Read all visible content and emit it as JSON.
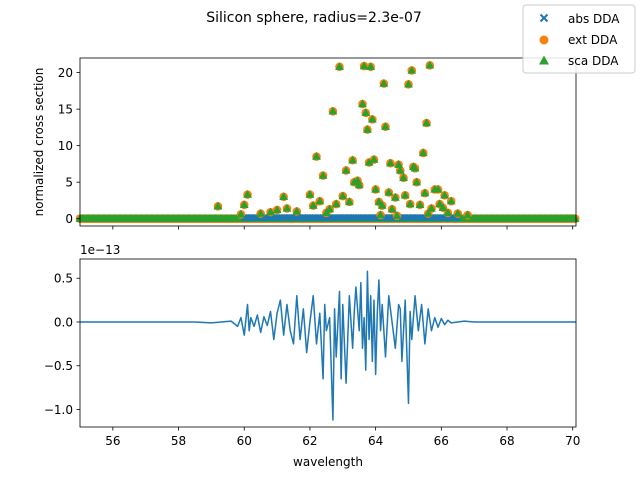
{
  "chart_data": [
    {
      "type": "scatter",
      "title": "Silicon sphere, radius=2.3e-07",
      "xlabel": "",
      "ylabel": "normalized cross section",
      "xlim": [
        55.0,
        70.1
      ],
      "ylim": [
        -1.0,
        22.0
      ],
      "yticks": [
        0,
        5,
        10,
        15,
        20
      ],
      "ytick_labels": [
        "0",
        "5",
        "10",
        "15",
        "20"
      ],
      "xticks": [
        56,
        58,
        60,
        62,
        64,
        66,
        68,
        70
      ],
      "legend": {
        "position": "top-right",
        "entries": [
          "abs DDA",
          "ext DDA",
          "sca DDA"
        ]
      },
      "series": [
        {
          "name": "abs DDA",
          "marker": "x",
          "color": "#1f77b4",
          "note_values": "all approx 0"
        },
        {
          "name": "ext DDA",
          "marker": "o",
          "color": "#ff7f0e"
        },
        {
          "name": "sca DDA",
          "marker": "^",
          "color": "#2ca02c"
        }
      ],
      "points": [
        [
          59.2,
          1.7
        ],
        [
          59.9,
          0.6
        ],
        [
          60.0,
          1.9
        ],
        [
          60.1,
          3.3
        ],
        [
          60.5,
          0.7
        ],
        [
          60.8,
          0.9
        ],
        [
          61.0,
          1.2
        ],
        [
          61.2,
          3.0
        ],
        [
          61.3,
          1.4
        ],
        [
          61.6,
          1.0
        ],
        [
          62.0,
          3.3
        ],
        [
          62.1,
          1.8
        ],
        [
          62.2,
          8.5
        ],
        [
          62.3,
          2.4
        ],
        [
          62.4,
          5.9
        ],
        [
          62.5,
          0.8
        ],
        [
          62.6,
          1.3
        ],
        [
          62.7,
          14.7
        ],
        [
          62.8,
          2.0
        ],
        [
          62.9,
          20.8
        ],
        [
          63.0,
          3.1
        ],
        [
          63.1,
          6.6
        ],
        [
          63.2,
          2.3
        ],
        [
          63.3,
          8.0
        ],
        [
          63.35,
          5.0
        ],
        [
          63.45,
          5.2
        ],
        [
          63.5,
          4.6
        ],
        [
          63.6,
          15.7
        ],
        [
          63.65,
          20.9
        ],
        [
          63.7,
          14.5
        ],
        [
          63.75,
          12.2
        ],
        [
          63.8,
          7.7
        ],
        [
          63.85,
          20.8
        ],
        [
          63.9,
          13.6
        ],
        [
          63.95,
          8.1
        ],
        [
          64.0,
          4.0
        ],
        [
          64.1,
          2.3
        ],
        [
          64.15,
          0.5
        ],
        [
          64.2,
          1.8
        ],
        [
          64.25,
          18.5
        ],
        [
          64.3,
          12.6
        ],
        [
          64.4,
          3.6
        ],
        [
          64.45,
          7.6
        ],
        [
          64.5,
          1.3
        ],
        [
          64.6,
          2.9
        ],
        [
          64.65,
          0.4
        ],
        [
          64.7,
          7.4
        ],
        [
          64.75,
          6.6
        ],
        [
          64.85,
          5.6
        ],
        [
          64.9,
          3.2
        ],
        [
          65.0,
          18.4
        ],
        [
          65.05,
          2.0
        ],
        [
          65.1,
          20.3
        ],
        [
          65.15,
          7.1
        ],
        [
          65.2,
          6.9
        ],
        [
          65.25,
          5.0
        ],
        [
          65.35,
          1.9
        ],
        [
          65.45,
          9.0
        ],
        [
          65.5,
          3.5
        ],
        [
          65.55,
          13.1
        ],
        [
          65.6,
          0.7
        ],
        [
          65.65,
          21.0
        ],
        [
          65.7,
          1.4
        ],
        [
          65.8,
          4.0
        ],
        [
          65.9,
          4.0
        ],
        [
          65.95,
          2.0
        ],
        [
          66.05,
          1.5
        ],
        [
          66.1,
          3.2
        ],
        [
          66.2,
          0.8
        ],
        [
          66.3,
          2.4
        ],
        [
          66.5,
          0.7
        ],
        [
          66.8,
          0.5
        ]
      ],
      "baseline_value": 0.0
    },
    {
      "type": "line",
      "xlabel": "wavelength",
      "ylabel": "",
      "offset_label": "1e−13",
      "xlim": [
        55.0,
        70.1
      ],
      "ylim": [
        -1.2,
        0.72
      ],
      "xticks": [
        56,
        58,
        60,
        62,
        64,
        66,
        68,
        70
      ],
      "xtick_labels": [
        "56",
        "58",
        "60",
        "62",
        "64",
        "66",
        "68",
        "70"
      ],
      "yticks": [
        -1.0,
        -0.5,
        0.0,
        0.5
      ],
      "ytick_labels": [
        "−1.0",
        "−0.5",
        "0.0",
        "0.5"
      ],
      "series": [
        {
          "name": "",
          "color": "#1f77b4",
          "x": [
            55.0,
            56.0,
            57.0,
            57.5,
            58.0,
            58.5,
            59.0,
            59.3,
            59.6,
            59.8,
            59.9,
            60.0,
            60.1,
            60.15,
            60.2,
            60.3,
            60.4,
            60.5,
            60.6,
            60.7,
            60.8,
            60.9,
            61.0,
            61.1,
            61.2,
            61.3,
            61.4,
            61.5,
            61.6,
            61.7,
            61.8,
            61.9,
            62.0,
            62.1,
            62.2,
            62.3,
            62.4,
            62.45,
            62.5,
            62.6,
            62.7,
            62.75,
            62.8,
            62.9,
            62.95,
            63.0,
            63.1,
            63.2,
            63.3,
            63.35,
            63.4,
            63.5,
            63.55,
            63.6,
            63.65,
            63.7,
            63.75,
            63.8,
            63.85,
            63.9,
            63.95,
            64.0,
            64.05,
            64.1,
            64.15,
            64.2,
            64.3,
            64.4,
            64.5,
            64.6,
            64.7,
            64.75,
            64.8,
            64.9,
            65.0,
            65.05,
            65.1,
            65.2,
            65.3,
            65.4,
            65.5,
            65.6,
            65.7,
            65.8,
            65.9,
            66.0,
            66.1,
            66.2,
            66.3,
            66.5,
            66.7,
            67.0,
            67.5,
            68.0,
            69.0,
            70.1
          ],
          "y": [
            0.0,
            0.0,
            0.0,
            0.0,
            0.0,
            0.0,
            -0.01,
            0.0,
            0.01,
            -0.05,
            0.05,
            -0.15,
            0.2,
            -0.1,
            0.05,
            -0.05,
            0.08,
            -0.12,
            0.06,
            -0.04,
            0.12,
            -0.2,
            0.1,
            0.25,
            -0.15,
            0.2,
            -0.1,
            -0.25,
            0.3,
            -0.2,
            0.15,
            -0.35,
            0.0,
            0.3,
            -0.25,
            0.1,
            -0.65,
            0.2,
            -0.1,
            0.05,
            -1.12,
            0.15,
            -0.4,
            0.35,
            -0.65,
            0.2,
            -0.7,
            0.3,
            -0.3,
            0.12,
            0.4,
            -0.1,
            0.45,
            -0.3,
            0.05,
            -0.55,
            0.58,
            -0.2,
            0.3,
            -0.45,
            0.25,
            -0.6,
            0.1,
            0.48,
            -0.1,
            0.2,
            -0.4,
            0.3,
            0.0,
            -0.3,
            0.2,
            0.15,
            -0.45,
            0.25,
            -0.93,
            0.12,
            -0.2,
            0.3,
            -0.1,
            0.2,
            -0.25,
            0.15,
            -0.1,
            0.05,
            -0.06,
            0.04,
            -0.03,
            0.02,
            -0.01,
            0.0,
            0.01,
            0.0,
            0.0,
            0.0,
            0.0,
            0.0
          ]
        }
      ]
    }
  ]
}
